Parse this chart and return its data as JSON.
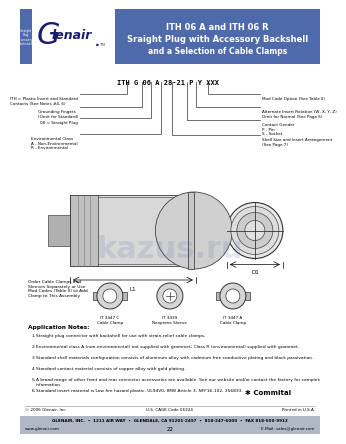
{
  "title_line1": "ITH 06 A and ITH 06 R",
  "title_line2": "Sraight Plug with Accessory Backshell",
  "title_line3": "and a Selection of Cable Clamps",
  "header_bg": "#4f6aab",
  "header_text_color": "#ffffff",
  "logo_bg": "#ffffff",
  "sidebar_bg": "#4f6aab",
  "part_number_line": "ITH G 06 A 28-21 P Y XXX",
  "left_labels": [
    "ITH = Plastic Insert and Standard\nContacts (See Notes #4, 6)",
    "Grounding Fingers\n(Omit for Standard)",
    "06 = Straight Plug",
    "Environmental Class\nA - Non-Environmental\nR - Environmental"
  ],
  "right_labels": [
    "Mod Code Option (See Table II)",
    "Alternate Insert Rotation (W, X, Y, Z)\nOmit for Normal (See Page 6)",
    "Contact Gender\nP - Pin\nS - Socket",
    "Shell Size and Insert Arrangement\n(See Page 7)"
  ],
  "cable_clamp_text": "Order Cable Clamps and\nSleeves Separately or Use\nMod Codes (Table II) to Add\nClamp to This Assembly",
  "clamp_labels": [
    "IT 3447 C\nCable Clamp",
    "IT 3439\nNeoprene Sleeve",
    "IT 3447 A\nCable Clamp"
  ],
  "app_notes_title": "Application Notes:",
  "app_notes": [
    "Straight plug connector with backshell for use with strain-relief cable clamps.",
    "Environmental class A (non-environmental) not supplied with grommet; Class R (environmental) supplied with grommet.",
    "Standard shell materials configuration consists of aluminum alloy with cadmium free conductive plating and black passivation.",
    "Standard contact material consists of copper alloy with gold plating.",
    "A broad range of other front and rear connector accessories are available. See our website and/or contact the factory for complete information.",
    "Standard insert material is Low fire hazard plastic: UL94V0, IMW Article 3, NFF16-102, 356833."
  ],
  "footer_copyright": "© 2006 Glenair, Inc.",
  "footer_cage": "U.S. CAGE Code 06324",
  "footer_printed": "Printed in U.S.A.",
  "footer_address": "GLENAIR, INC.  •  1211 AIR WAY  •  GLENDALE, CA 91201-2497  •  818-247-6000  •  FAX 818-500-9912",
  "footer_web": "www.glenair.com",
  "footer_page": "22",
  "footer_email": "E-Mail: sales@glenair.com",
  "footer_bg": "#b0b8c8",
  "bg_color": "#ffffff",
  "watermark_text": "kazus.ru",
  "watermark_color": "#4a6097"
}
